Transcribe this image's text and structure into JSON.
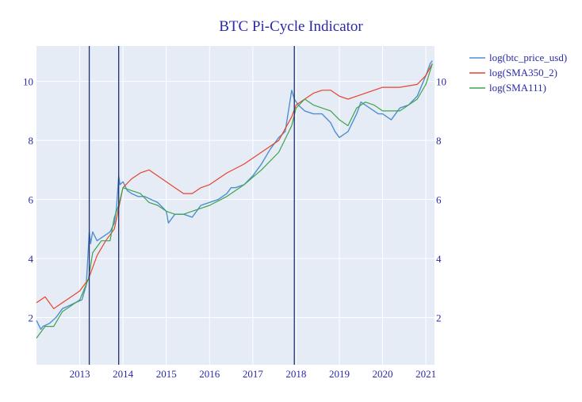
{
  "chart_data": {
    "type": "line",
    "title": "BTC Pi-Cycle Indicator",
    "xlabel": "",
    "ylabel": "",
    "xlim": [
      2012.0,
      2021.2
    ],
    "ylim_left": [
      0.4,
      11.2
    ],
    "ylim_right": [
      0.4,
      11.2
    ],
    "x_ticks": [
      "2013",
      "2014",
      "2015",
      "2016",
      "2017",
      "2018",
      "2019",
      "2020",
      "2021"
    ],
    "y_ticks_left": [
      "2",
      "4",
      "6",
      "8",
      "10"
    ],
    "y_ticks_right": [
      "2",
      "4",
      "6",
      "8",
      "10"
    ],
    "y_ticks_left_values": [
      2,
      4,
      6,
      8,
      10
    ],
    "y_ticks_right_values": [
      2,
      4,
      6,
      8,
      10
    ],
    "grid": true,
    "legend_position": "top-right outside",
    "colors": {
      "background": "#e5ecf6",
      "title": "#2a2aa8",
      "vlines": "#1f2f6e"
    },
    "vlines_x": [
      2013.22,
      2013.9,
      2017.96
    ],
    "series": [
      {
        "name": "log(btc_price_usd)",
        "color": "#4f8fd0",
        "x": [
          2012.0,
          2012.1,
          2012.15,
          2012.3,
          2012.45,
          2012.6,
          2012.75,
          2012.9,
          2013.05,
          2013.15,
          2013.22,
          2013.25,
          2013.3,
          2013.4,
          2013.5,
          2013.6,
          2013.7,
          2013.8,
          2013.85,
          2013.9,
          2013.93,
          2014.0,
          2014.1,
          2014.2,
          2014.35,
          2014.5,
          2014.65,
          2014.8,
          2015.0,
          2015.05,
          2015.2,
          2015.4,
          2015.6,
          2015.8,
          2016.0,
          2016.2,
          2016.4,
          2016.5,
          2016.6,
          2016.8,
          2017.0,
          2017.2,
          2017.4,
          2017.6,
          2017.75,
          2017.9,
          2017.96,
          2018.05,
          2018.2,
          2018.4,
          2018.6,
          2018.8,
          2018.9,
          2019.0,
          2019.2,
          2019.4,
          2019.5,
          2019.7,
          2019.9,
          2020.0,
          2020.2,
          2020.4,
          2020.6,
          2020.8,
          2021.0,
          2021.1,
          2021.15
        ],
        "values": [
          1.9,
          1.6,
          1.7,
          1.8,
          2.0,
          2.3,
          2.4,
          2.5,
          2.6,
          3.1,
          4.9,
          4.5,
          4.9,
          4.6,
          4.7,
          4.8,
          4.9,
          5.2,
          5.7,
          6.8,
          6.5,
          6.6,
          6.3,
          6.2,
          6.1,
          6.1,
          6.0,
          5.9,
          5.6,
          5.2,
          5.5,
          5.5,
          5.4,
          5.8,
          5.9,
          6.0,
          6.2,
          6.4,
          6.4,
          6.5,
          6.8,
          7.2,
          7.7,
          8.1,
          8.3,
          9.7,
          9.4,
          9.2,
          9.0,
          8.9,
          8.9,
          8.6,
          8.3,
          8.1,
          8.3,
          8.9,
          9.3,
          9.1,
          8.9,
          8.9,
          8.7,
          9.1,
          9.2,
          9.5,
          10.2,
          10.6,
          10.7
        ]
      },
      {
        "name": "log(SMA350_2)",
        "color": "#e8432c",
        "x": [
          2012.0,
          2012.2,
          2012.4,
          2012.6,
          2012.8,
          2013.0,
          2013.2,
          2013.4,
          2013.6,
          2013.8,
          2014.0,
          2014.2,
          2014.4,
          2014.6,
          2014.8,
          2015.0,
          2015.2,
          2015.4,
          2015.6,
          2015.8,
          2016.0,
          2016.4,
          2016.8,
          2017.2,
          2017.6,
          2017.9,
          2018.0,
          2018.2,
          2018.4,
          2018.6,
          2018.8,
          2019.0,
          2019.2,
          2019.4,
          2019.6,
          2019.8,
          2020.0,
          2020.4,
          2020.8,
          2021.0,
          2021.15
        ],
        "values": [
          2.5,
          2.7,
          2.3,
          2.5,
          2.7,
          2.9,
          3.3,
          4.1,
          4.6,
          5.0,
          6.4,
          6.7,
          6.9,
          7.0,
          6.8,
          6.6,
          6.4,
          6.2,
          6.2,
          6.4,
          6.5,
          6.9,
          7.2,
          7.6,
          8.0,
          8.8,
          9.2,
          9.4,
          9.6,
          9.7,
          9.7,
          9.5,
          9.4,
          9.5,
          9.6,
          9.7,
          9.8,
          9.8,
          9.9,
          10.2,
          10.6
        ]
      },
      {
        "name": "log(SMA111)",
        "color": "#3fa34d",
        "x": [
          2012.0,
          2012.2,
          2012.4,
          2012.6,
          2012.8,
          2013.0,
          2013.2,
          2013.3,
          2013.5,
          2013.7,
          2013.8,
          2013.9,
          2014.0,
          2014.2,
          2014.4,
          2014.6,
          2014.8,
          2015.0,
          2015.2,
          2015.4,
          2015.6,
          2016.0,
          2016.4,
          2016.8,
          2017.2,
          2017.6,
          2017.9,
          2018.0,
          2018.2,
          2018.4,
          2018.6,
          2018.8,
          2019.0,
          2019.2,
          2019.4,
          2019.6,
          2019.8,
          2020.0,
          2020.4,
          2020.6,
          2020.8,
          2021.0,
          2021.15
        ],
        "values": [
          1.3,
          1.7,
          1.7,
          2.2,
          2.4,
          2.6,
          3.3,
          4.2,
          4.6,
          4.6,
          5.4,
          5.8,
          6.4,
          6.3,
          6.2,
          5.9,
          5.8,
          5.6,
          5.5,
          5.5,
          5.6,
          5.8,
          6.1,
          6.5,
          7.0,
          7.6,
          8.5,
          9.1,
          9.4,
          9.2,
          9.1,
          9.0,
          8.7,
          8.5,
          9.1,
          9.3,
          9.2,
          9.0,
          9.0,
          9.2,
          9.4,
          9.9,
          10.6
        ]
      }
    ]
  }
}
